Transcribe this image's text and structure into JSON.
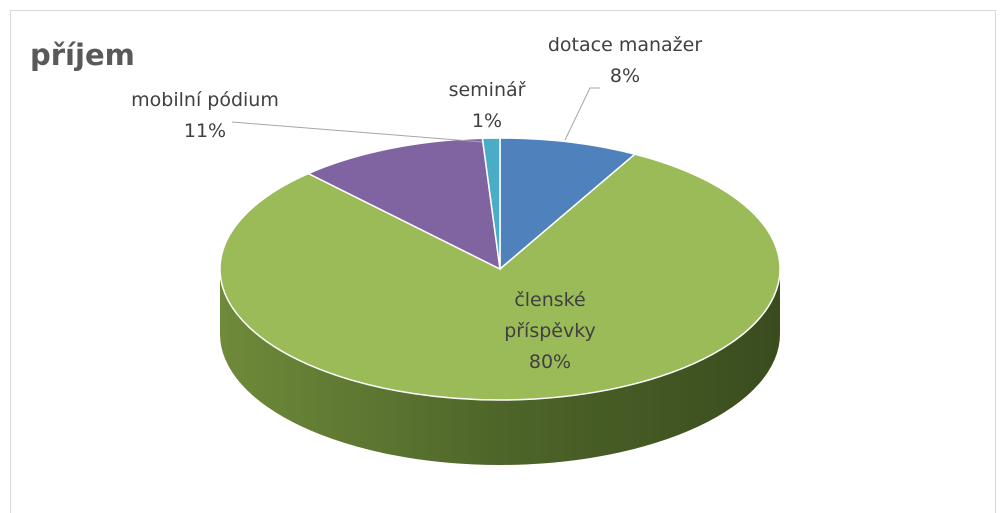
{
  "chart_data": {
    "type": "pie",
    "title": "příjem",
    "categories": [
      "dotace manažer",
      "členské příspěvky",
      "mobilní pódium",
      "seminář"
    ],
    "values": [
      8,
      80,
      11,
      1
    ],
    "value_labels": [
      "8%",
      "80%",
      "11%",
      "1%"
    ],
    "colors": [
      "#4f81bd",
      "#9bbb59",
      "#8064a2",
      "#4bacc6"
    ]
  }
}
